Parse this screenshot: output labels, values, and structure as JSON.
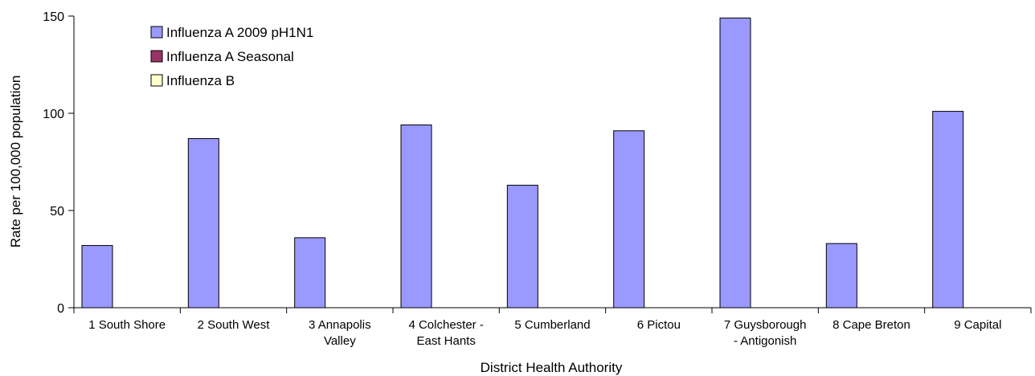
{
  "chart_data": {
    "type": "bar",
    "categories": [
      [
        "1 South Shore"
      ],
      [
        "2 South West"
      ],
      [
        "3 Annapolis",
        "Valley"
      ],
      [
        "4 Colchester -",
        "East Hants"
      ],
      [
        "5 Cumberland"
      ],
      [
        "6 Pictou"
      ],
      [
        "7 Guysborough",
        "- Antigonish"
      ],
      [
        "8 Cape Breton"
      ],
      [
        "9 Capital"
      ]
    ],
    "series": [
      {
        "name": "Influenza A 2009 pH1N1",
        "color": "#9999ff",
        "values": [
          32,
          87,
          36,
          94,
          63,
          91,
          149,
          33,
          101
        ]
      },
      {
        "name": "Influenza A Seasonal",
        "color": "#993366",
        "values": [
          0,
          0,
          0,
          0,
          0,
          0,
          0,
          0,
          0
        ]
      },
      {
        "name": "Influenza B",
        "color": "#ffffcc",
        "values": [
          0,
          0,
          0,
          0,
          0,
          0,
          0,
          0,
          0
        ]
      }
    ],
    "xlabel": "District Health Authority",
    "ylabel": "Rate per 100,000 population",
    "ylim": [
      0,
      150
    ],
    "yticks": [
      "0",
      "50",
      "100",
      "150"
    ],
    "grid": false,
    "legend_position": "top-left"
  }
}
